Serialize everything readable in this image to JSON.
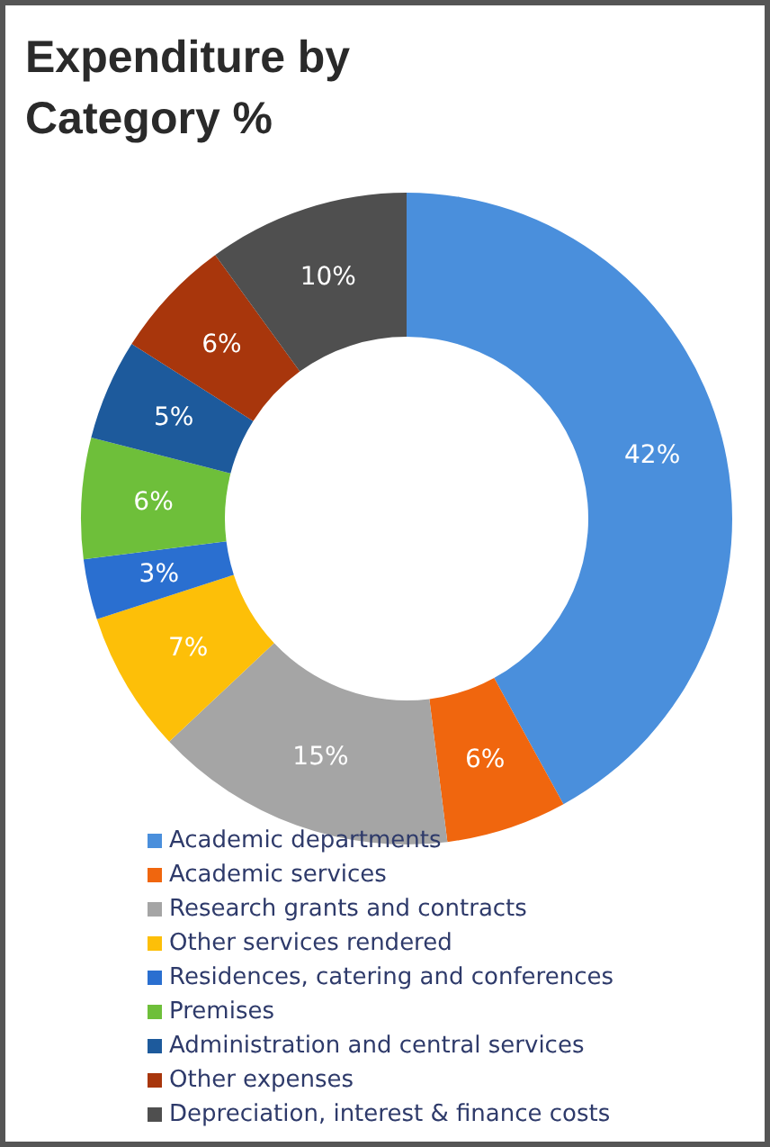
{
  "chart_data": {
    "type": "donut",
    "title": "Expenditure by Category %",
    "categories": [
      "Academic departments",
      "Academic services",
      "Research grants and contracts",
      "Other services rendered",
      "Residences, catering and conferences",
      "Premises",
      "Administration and central services",
      "Other expenses",
      "Depreciation, interest & finance costs"
    ],
    "values": [
      42,
      6,
      15,
      7,
      3,
      6,
      5,
      6,
      10
    ],
    "colors": [
      "#4a8fdc",
      "#f0660e",
      "#a5a5a5",
      "#fdbf08",
      "#2a6fd0",
      "#6ebf3a",
      "#1d5a9c",
      "#a8360c",
      "#4f4f4f"
    ],
    "value_labels": [
      "42%",
      "6%",
      "15%",
      "7%",
      "3%",
      "6%",
      "5%",
      "6%",
      "10%"
    ],
    "legend": "bottom"
  }
}
